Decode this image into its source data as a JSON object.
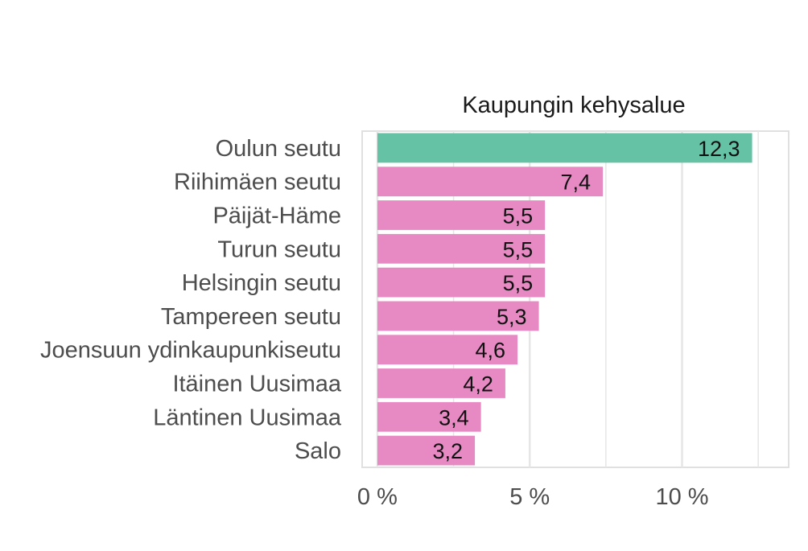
{
  "chart_data": {
    "type": "bar",
    "orientation": "horizontal",
    "title": "Kaupungin kehysalue",
    "categories": [
      "Oulun seutu",
      "Riihimäen seutu",
      "Päijät-Häme",
      "Turun seutu",
      "Helsingin seutu",
      "Tampereen seutu",
      "Joensuun ydinkaupunkiseutu",
      "Itäinen Uusimaa",
      "Läntinen Uusimaa",
      "Salo"
    ],
    "values": [
      12.3,
      7.4,
      5.5,
      5.5,
      5.5,
      5.3,
      4.6,
      4.2,
      3.4,
      3.2
    ],
    "value_labels": [
      "12,3",
      "7,4",
      "5,5",
      "5,5",
      "5,5",
      "5,3",
      "4,6",
      "4,2",
      "3,4",
      "3,2"
    ],
    "bar_colors": [
      "#66c2a5",
      "#e78ac3",
      "#e78ac3",
      "#e78ac3",
      "#e78ac3",
      "#e78ac3",
      "#e78ac3",
      "#e78ac3",
      "#e78ac3",
      "#e78ac3"
    ],
    "x_ticks": [
      0,
      5,
      10
    ],
    "x_tick_labels": [
      "0 %",
      "5 %",
      "10 %"
    ],
    "xlim": [
      -0.5,
      13.5
    ],
    "grid": true,
    "panel_border_color": "#e0e0e0",
    "grid_color": "#e6e6e6"
  }
}
